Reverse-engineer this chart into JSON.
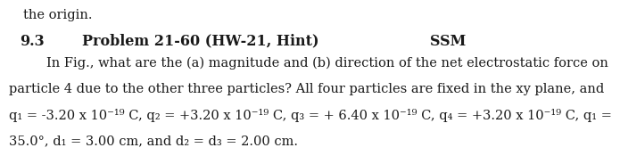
{
  "bg_color": "#ffffff",
  "text_color": "#1a1a1a",
  "top_partial": "the origin.",
  "section_num": "9.3",
  "title_bold": "Problem 21-60 (HW-21, Hint)",
  "ssm": "SSM",
  "line1": "In Fig., what are the (a) magnitude and (b) direction of the net electrostatic force on",
  "line2": "particle 4 due to the other three particles? All four particles are fixed in the xy plane, and",
  "line3": "q₁ = -3.20 x 10⁻¹⁹ C, q₂ = +3.20 x 10⁻¹⁹ C, q₃ = + 6.40 x 10⁻¹⁹ C, q₄ = +3.20 x 10⁻¹⁹ C, q₁ =",
  "line4": "35.0°, d₁ = 3.00 cm, and d₂ = d₃ = 2.00 cm.",
  "font_family": "DejaVu Serif",
  "fs_header": 11.5,
  "fs_body": 10.5
}
